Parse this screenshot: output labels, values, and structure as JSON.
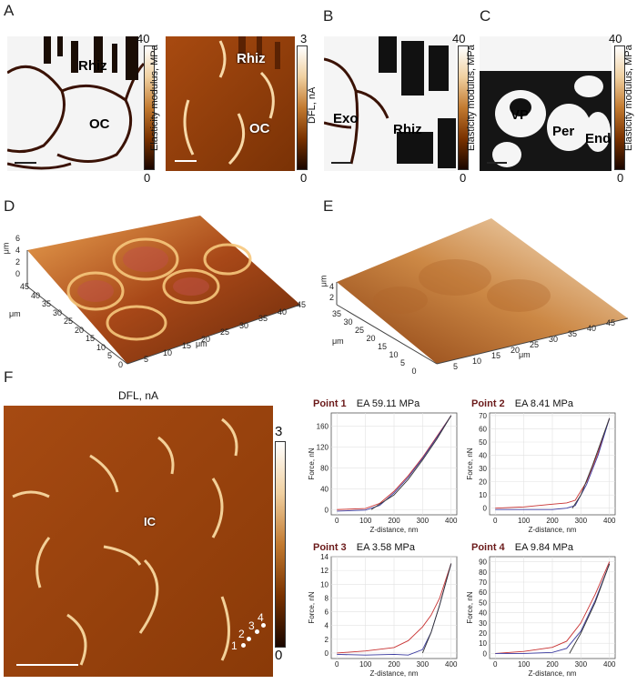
{
  "panel_labels": {
    "A": "A",
    "B": "B",
    "C": "C",
    "D": "D",
    "E": "E",
    "F": "F"
  },
  "panelA": {
    "left": {
      "labels": [
        "Rhiz",
        "OC"
      ],
      "colorbar": {
        "max": "40",
        "min": "0",
        "title": "Elasticity modulus, MPa"
      }
    },
    "right": {
      "labels": [
        "Rhiz",
        "OC"
      ],
      "colorbar": {
        "max": "3",
        "min": "0",
        "title": "DFL, nA"
      }
    }
  },
  "panelB": {
    "labels": [
      "Exo",
      "Rhiz"
    ],
    "colorbar": {
      "max": "40",
      "min": "0",
      "title": "Elasticity modulus, MPa"
    }
  },
  "panelC": {
    "labels": [
      "VP",
      "Per",
      "End"
    ],
    "colorbar": {
      "max": "40",
      "min": "0",
      "title": "Elasticity modulus, MPa"
    }
  },
  "panelD": {
    "z_label": "μm",
    "z_ticks": [
      "6",
      "4",
      "2",
      "0"
    ],
    "y_label": "μm",
    "y_ticks": [
      "45",
      "40",
      "35",
      "30",
      "25",
      "20",
      "15",
      "10",
      "5",
      "0"
    ],
    "x_label": "μm",
    "x_ticks": [
      "5",
      "10",
      "15",
      "20",
      "25",
      "30",
      "35",
      "40",
      "45"
    ]
  },
  "panelE": {
    "z_label": "μm",
    "z_ticks": [
      "4",
      "2"
    ],
    "y_label": "μm",
    "y_ticks": [
      "35",
      "30",
      "25",
      "20",
      "15",
      "10",
      "5",
      "0"
    ],
    "x_label": "μm",
    "x_ticks": [
      "5",
      "10",
      "15",
      "20",
      "25",
      "30",
      "35",
      "40",
      "45"
    ]
  },
  "panelF": {
    "title": "DFL, nA",
    "label": "IC",
    "points": [
      "1",
      "2",
      "3",
      "4"
    ],
    "colorbar": {
      "max": "3",
      "min": "0"
    }
  },
  "chart_data": [
    {
      "type": "line",
      "title": "Point 1",
      "subtitle": "EA 59.11 MPa",
      "xlabel": "Z-distance, nm",
      "ylabel": "Force, nN",
      "x_ticks": [
        0,
        100,
        200,
        300,
        400
      ],
      "y_ticks": [
        0,
        40,
        80,
        120,
        160
      ],
      "xlim": [
        -20,
        420
      ],
      "ylim": [
        -10,
        185
      ],
      "series": [
        {
          "color": "#c83232",
          "x": [
            0,
            100,
            150,
            200,
            250,
            300,
            350,
            400
          ],
          "y": [
            0,
            2,
            12,
            35,
            65,
            100,
            140,
            180
          ]
        },
        {
          "color": "#3a3aa0",
          "x": [
            0,
            100,
            150,
            200,
            250,
            300,
            350,
            400
          ],
          "y": [
            -3,
            -1,
            8,
            32,
            62,
            98,
            138,
            180
          ]
        },
        {
          "color": "#333333",
          "x": [
            120,
            200,
            250,
            300,
            350,
            400
          ],
          "y": [
            0,
            28,
            58,
            95,
            135,
            180
          ]
        }
      ]
    },
    {
      "type": "line",
      "title": "Point 2",
      "subtitle": "EA 8.41 MPa",
      "xlabel": "Z-distance, nm",
      "ylabel": "Force, nN",
      "x_ticks": [
        0,
        100,
        200,
        300,
        400
      ],
      "y_ticks": [
        0,
        10,
        20,
        30,
        40,
        50,
        60,
        70
      ],
      "xlim": [
        -20,
        420
      ],
      "ylim": [
        -5,
        72
      ],
      "series": [
        {
          "color": "#c83232",
          "x": [
            0,
            100,
            200,
            250,
            280,
            320,
            360,
            400
          ],
          "y": [
            0,
            1,
            3,
            4,
            6,
            20,
            42,
            68
          ]
        },
        {
          "color": "#3a3aa0",
          "x": [
            0,
            100,
            200,
            250,
            280,
            320,
            360,
            400
          ],
          "y": [
            -1,
            -1,
            -1,
            0,
            2,
            18,
            40,
            68
          ]
        },
        {
          "color": "#333333",
          "x": [
            270,
            300,
            340,
            400
          ],
          "y": [
            0,
            10,
            32,
            68
          ]
        }
      ]
    },
    {
      "type": "line",
      "title": "Point 3",
      "subtitle": "EA 3.58 MPa",
      "xlabel": "Z-distance, nm",
      "ylabel": "Force, nN",
      "x_ticks": [
        0,
        100,
        200,
        300,
        400
      ],
      "y_ticks": [
        0,
        2,
        4,
        6,
        8,
        10,
        12,
        14
      ],
      "xlim": [
        -20,
        420
      ],
      "ylim": [
        -0.8,
        14
      ],
      "series": [
        {
          "color": "#c83232",
          "x": [
            0,
            100,
            200,
            250,
            300,
            330,
            360,
            400
          ],
          "y": [
            0,
            0.3,
            0.8,
            1.8,
            3.8,
            5.5,
            8,
            13
          ]
        },
        {
          "color": "#3a3aa0",
          "x": [
            0,
            100,
            200,
            250,
            300,
            330,
            360,
            400
          ],
          "y": [
            -0.2,
            -0.3,
            -0.2,
            -0.3,
            0.5,
            3,
            7,
            13
          ]
        },
        {
          "color": "#333333",
          "x": [
            300,
            330,
            360,
            400
          ],
          "y": [
            0,
            3,
            7,
            13
          ]
        }
      ]
    },
    {
      "type": "line",
      "title": "Point 4",
      "subtitle": "EA 9.84 MPa",
      "xlabel": "Z-distance, nm",
      "ylabel": "Force, nN",
      "x_ticks": [
        0,
        100,
        200,
        300,
        400
      ],
      "y_ticks": [
        0,
        10,
        20,
        30,
        40,
        50,
        60,
        70,
        80,
        90
      ],
      "xlim": [
        -20,
        420
      ],
      "ylim": [
        -5,
        95
      ],
      "series": [
        {
          "color": "#c83232",
          "x": [
            0,
            100,
            200,
            250,
            300,
            350,
            400
          ],
          "y": [
            0,
            2,
            6,
            12,
            30,
            58,
            90
          ]
        },
        {
          "color": "#3a3aa0",
          "x": [
            0,
            100,
            200,
            250,
            300,
            350,
            400
          ],
          "y": [
            0,
            0,
            1,
            5,
            22,
            52,
            88
          ]
        },
        {
          "color": "#333333",
          "x": [
            260,
            300,
            350,
            400
          ],
          "y": [
            0,
            20,
            50,
            88
          ]
        }
      ]
    }
  ]
}
